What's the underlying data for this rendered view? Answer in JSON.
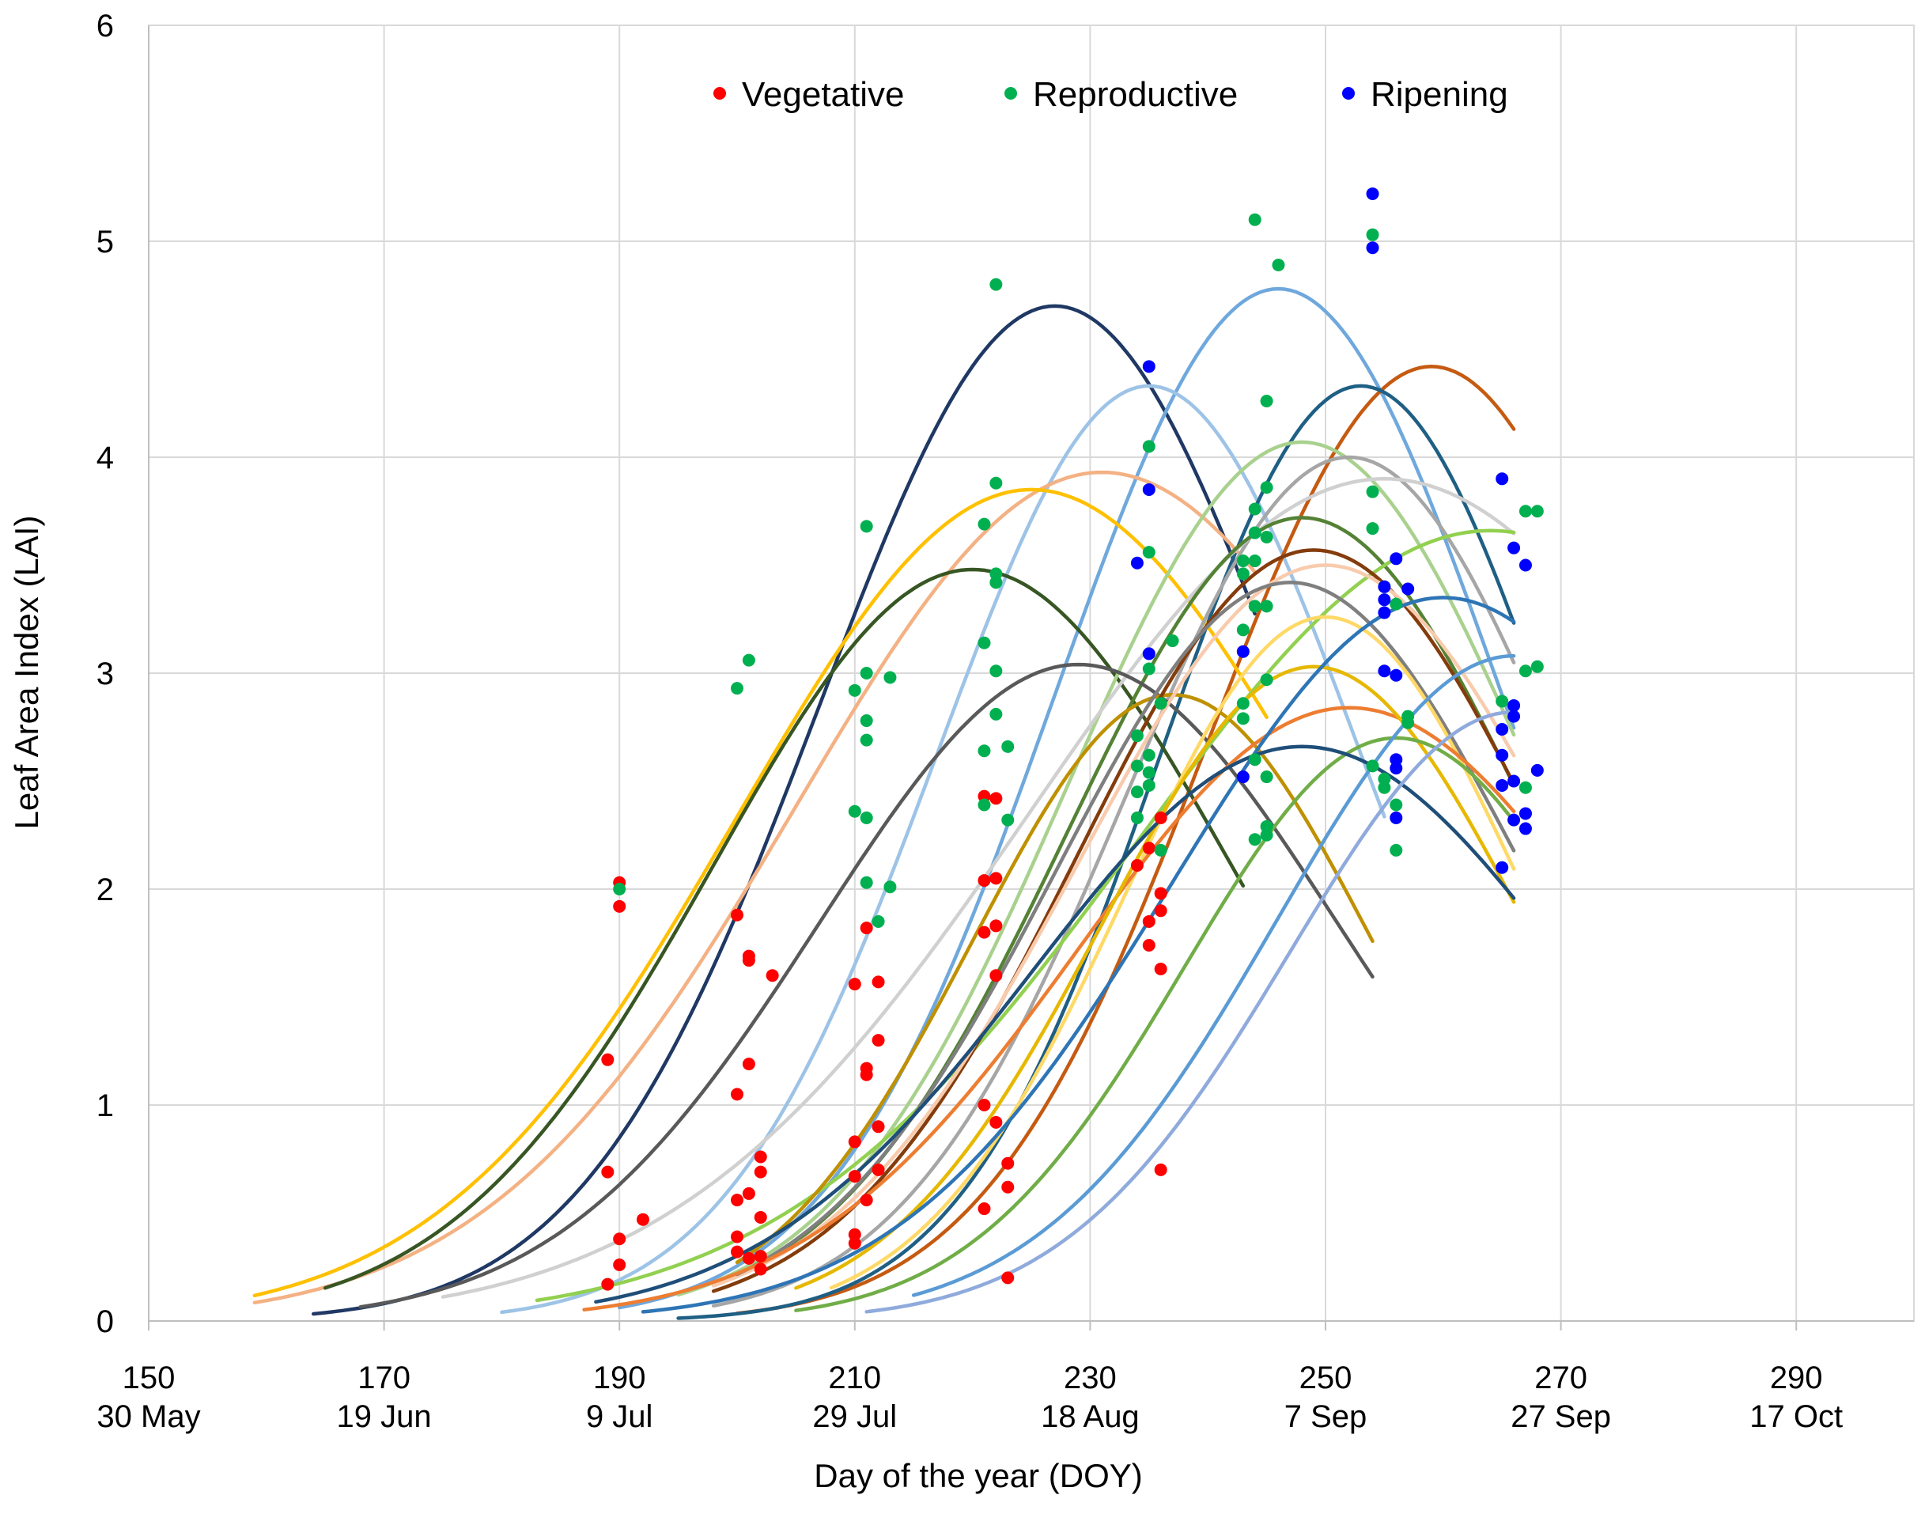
{
  "chart_data": {
    "type": "scatter",
    "title": "",
    "xlabel": "Day of the year (DOY)",
    "ylabel": "Leaf Area Index (LAI)",
    "xlim": [
      150,
      300
    ],
    "ylim": [
      0,
      6
    ],
    "x_ticks": [
      {
        "value": 150,
        "doy": "150",
        "date": "30 May"
      },
      {
        "value": 170,
        "doy": "170",
        "date": "19 Jun"
      },
      {
        "value": 190,
        "doy": "190",
        "date": "9 Jul"
      },
      {
        "value": 210,
        "doy": "210",
        "date": "29 Jul"
      },
      {
        "value": 230,
        "doy": "230",
        "date": "18 Aug"
      },
      {
        "value": 250,
        "doy": "250",
        "date": "7 Sep"
      },
      {
        "value": 270,
        "doy": "270",
        "date": "27 Sep"
      },
      {
        "value": 290,
        "doy": "290",
        "date": "17 Oct"
      }
    ],
    "y_ticks": [
      "0",
      "1",
      "2",
      "3",
      "4",
      "5",
      "6"
    ],
    "grid": true,
    "legend_position": "top-center",
    "legend": [
      {
        "name": "Vegetative",
        "color": "#ff0000"
      },
      {
        "name": "Reproductive",
        "color": "#00b050"
      },
      {
        "name": "Ripening",
        "color": "#0000ff"
      }
    ],
    "series": [
      {
        "name": "Vegetative",
        "color": "#ff0000",
        "points": [
          [
            190,
            2.03
          ],
          [
            190,
            1.92
          ],
          [
            189,
            1.21
          ],
          [
            189,
            0.69
          ],
          [
            190,
            0.38
          ],
          [
            190,
            0.26
          ],
          [
            189,
            0.17
          ],
          [
            192,
            0.47
          ],
          [
            200,
            1.88
          ],
          [
            201,
            1.69
          ],
          [
            201,
            1.67
          ],
          [
            203,
            1.6
          ],
          [
            201,
            1.19
          ],
          [
            200,
            1.05
          ],
          [
            202,
            0.76
          ],
          [
            202,
            0.69
          ],
          [
            201,
            0.59
          ],
          [
            200,
            0.56
          ],
          [
            202,
            0.48
          ],
          [
            200,
            0.39
          ],
          [
            200,
            0.32
          ],
          [
            201,
            0.29
          ],
          [
            202,
            0.3
          ],
          [
            202,
            0.24
          ],
          [
            211,
            1.82
          ],
          [
            210,
            1.56
          ],
          [
            212,
            1.57
          ],
          [
            212,
            1.3
          ],
          [
            211,
            1.17
          ],
          [
            211,
            1.14
          ],
          [
            212,
            0.9
          ],
          [
            210,
            0.83
          ],
          [
            210,
            0.67
          ],
          [
            212,
            0.7
          ],
          [
            211,
            0.56
          ],
          [
            210,
            0.4
          ],
          [
            210,
            0.36
          ],
          [
            221,
            2.43
          ],
          [
            222,
            2.42
          ],
          [
            221,
            2.04
          ],
          [
            222,
            2.05
          ],
          [
            222,
            1.83
          ],
          [
            221,
            1.8
          ],
          [
            222,
            1.6
          ],
          [
            221,
            1.0
          ],
          [
            222,
            0.92
          ],
          [
            223,
            0.73
          ],
          [
            223,
            0.62
          ],
          [
            221,
            0.52
          ],
          [
            223,
            0.2
          ],
          [
            236,
            2.33
          ],
          [
            235,
            2.19
          ],
          [
            234,
            2.11
          ],
          [
            236,
            1.98
          ],
          [
            236,
            1.9
          ],
          [
            235,
            1.85
          ],
          [
            235,
            1.74
          ],
          [
            236,
            1.63
          ],
          [
            236,
            0.7
          ]
        ]
      },
      {
        "name": "Reproductive",
        "color": "#00b050",
        "points": [
          [
            190,
            2.0
          ],
          [
            200,
            2.93
          ],
          [
            201,
            3.06
          ],
          [
            211,
            3.68
          ],
          [
            211,
            3.0
          ],
          [
            213,
            2.98
          ],
          [
            210,
            2.92
          ],
          [
            211,
            2.78
          ],
          [
            211,
            2.69
          ],
          [
            210,
            2.36
          ],
          [
            211,
            2.33
          ],
          [
            211,
            2.03
          ],
          [
            213,
            2.01
          ],
          [
            212,
            1.85
          ],
          [
            222,
            4.8
          ],
          [
            222,
            3.88
          ],
          [
            221,
            3.69
          ],
          [
            222,
            3.46
          ],
          [
            222,
            3.42
          ],
          [
            221,
            3.14
          ],
          [
            222,
            3.01
          ],
          [
            222,
            2.81
          ],
          [
            223,
            2.66
          ],
          [
            221,
            2.64
          ],
          [
            221,
            2.39
          ],
          [
            223,
            2.32
          ],
          [
            235,
            4.05
          ],
          [
            235,
            3.56
          ],
          [
            237,
            3.15
          ],
          [
            235,
            3.02
          ],
          [
            236,
            2.86
          ],
          [
            234,
            2.71
          ],
          [
            235,
            2.62
          ],
          [
            234,
            2.57
          ],
          [
            235,
            2.54
          ],
          [
            235,
            2.48
          ],
          [
            234,
            2.45
          ],
          [
            234,
            2.33
          ],
          [
            236,
            2.18
          ],
          [
            244,
            5.1
          ],
          [
            246,
            4.89
          ],
          [
            245,
            4.26
          ],
          [
            245,
            3.86
          ],
          [
            244,
            3.76
          ],
          [
            244,
            3.65
          ],
          [
            245,
            3.63
          ],
          [
            243,
            3.52
          ],
          [
            244,
            3.52
          ],
          [
            243,
            3.46
          ],
          [
            244,
            3.31
          ],
          [
            245,
            3.31
          ],
          [
            243,
            3.2
          ],
          [
            245,
            2.97
          ],
          [
            243,
            2.86
          ],
          [
            243,
            2.79
          ],
          [
            244,
            2.6
          ],
          [
            245,
            2.52
          ],
          [
            245,
            2.29
          ],
          [
            244,
            2.23
          ],
          [
            245,
            2.25
          ],
          [
            254,
            5.03
          ],
          [
            254,
            3.84
          ],
          [
            254,
            3.67
          ],
          [
            255,
            3.4
          ],
          [
            256,
            3.32
          ],
          [
            257,
            2.8
          ],
          [
            257,
            2.77
          ],
          [
            254,
            2.57
          ],
          [
            255,
            2.51
          ],
          [
            255,
            2.47
          ],
          [
            256,
            2.39
          ],
          [
            256,
            2.18
          ],
          [
            268,
            3.75
          ],
          [
            267,
            3.75
          ],
          [
            268,
            3.03
          ],
          [
            267,
            3.01
          ],
          [
            265,
            2.87
          ],
          [
            267,
            2.47
          ]
        ]
      },
      {
        "name": "Ripening",
        "color": "#0000ff",
        "points": [
          [
            235,
            4.42
          ],
          [
            235,
            3.85
          ],
          [
            234,
            3.51
          ],
          [
            235,
            3.09
          ],
          [
            243,
            3.1
          ],
          [
            243,
            2.52
          ],
          [
            254,
            5.22
          ],
          [
            254,
            4.97
          ],
          [
            255,
            3.4
          ],
          [
            255,
            3.34
          ],
          [
            255,
            3.28
          ],
          [
            256,
            3.53
          ],
          [
            257,
            3.39
          ],
          [
            255,
            3.01
          ],
          [
            256,
            2.99
          ],
          [
            256,
            2.6
          ],
          [
            256,
            2.56
          ],
          [
            256,
            2.33
          ],
          [
            265,
            3.9
          ],
          [
            266,
            3.58
          ],
          [
            267,
            3.5
          ],
          [
            266,
            2.85
          ],
          [
            266,
            2.8
          ],
          [
            265,
            2.74
          ],
          [
            265,
            2.62
          ],
          [
            268,
            2.55
          ],
          [
            266,
            2.5
          ],
          [
            265,
            2.48
          ],
          [
            267,
            2.35
          ],
          [
            266,
            2.32
          ],
          [
            267,
            2.28
          ],
          [
            265,
            2.1
          ]
        ]
      }
    ],
    "fitted_curves": [
      {
        "color": "#1f3864",
        "x0": 164,
        "x1": 244,
        "peak_x": 227,
        "peak_y": 4.7,
        "sigma": 20
      },
      {
        "color": "#6fa8dc",
        "x0": 190,
        "x1": 266,
        "peak_x": 246,
        "peak_y": 4.78,
        "sigma": 19
      },
      {
        "color": "#9dc3e6",
        "x0": 180,
        "x1": 255,
        "peak_x": 235,
        "peak_y": 4.33,
        "sigma": 18
      },
      {
        "color": "#c55a11",
        "x0": 200,
        "x1": 266,
        "peak_x": 259,
        "peak_y": 4.42,
        "sigma": 19
      },
      {
        "color": "#1f5f84",
        "x0": 195,
        "x1": 266,
        "peak_x": 253,
        "peak_y": 4.33,
        "sigma": 17
      },
      {
        "color": "#f4b183",
        "x0": 159,
        "x1": 244,
        "peak_x": 231,
        "peak_y": 3.93,
        "sigma": 26
      },
      {
        "color": "#ffc000",
        "x0": 159,
        "x1": 245,
        "peak_x": 225,
        "peak_y": 3.85,
        "sigma": 25
      },
      {
        "color": "#375623",
        "x0": 165,
        "x1": 243,
        "peak_x": 220,
        "peak_y": 3.48,
        "sigma": 22
      },
      {
        "color": "#a9d18e",
        "x0": 195,
        "x1": 266,
        "peak_x": 248,
        "peak_y": 4.07,
        "sigma": 20
      },
      {
        "color": "#a6a6a6",
        "x0": 198,
        "x1": 266,
        "peak_x": 252,
        "peak_y": 4.0,
        "sigma": 19
      },
      {
        "color": "#d0d0d0",
        "x0": 175,
        "x1": 266,
        "peak_x": 255,
        "peak_y": 3.9,
        "sigma": 30
      },
      {
        "color": "#548235",
        "x0": 200,
        "x1": 266,
        "peak_x": 248,
        "peak_y": 3.72,
        "sigma": 20
      },
      {
        "color": "#595959",
        "x0": 168,
        "x1": 254,
        "peak_x": 229,
        "peak_y": 3.04,
        "sigma": 22
      },
      {
        "color": "#92d050",
        "x0": 183,
        "x1": 266,
        "peak_x": 264,
        "peak_y": 3.66,
        "sigma": 30
      },
      {
        "color": "#bf9000",
        "x0": 200,
        "x1": 254,
        "peak_x": 237,
        "peak_y": 2.9,
        "sigma": 17
      },
      {
        "color": "#843c0c",
        "x0": 198,
        "x1": 266,
        "peak_x": 249,
        "peak_y": 3.57,
        "sigma": 20
      },
      {
        "color": "#f8cbad",
        "x0": 198,
        "x1": 266,
        "peak_x": 250,
        "peak_y": 3.5,
        "sigma": 21
      },
      {
        "color": "#7f7f7f",
        "x0": 200,
        "x1": 266,
        "peak_x": 247,
        "peak_y": 3.42,
        "sigma": 20
      },
      {
        "color": "#ffd966",
        "x0": 208,
        "x1": 266,
        "peak_x": 250,
        "peak_y": 3.26,
        "sigma": 17
      },
      {
        "color": "#ed7d31",
        "x0": 187,
        "x1": 266,
        "peak_x": 252,
        "peak_y": 2.84,
        "sigma": 23
      },
      {
        "color": "#e6b800",
        "x0": 205,
        "x1": 266,
        "peak_x": 249,
        "peak_y": 3.03,
        "sigma": 18
      },
      {
        "color": "#2e75b6",
        "x0": 192,
        "x1": 266,
        "peak_x": 260,
        "peak_y": 3.35,
        "sigma": 23
      },
      {
        "color": "#70ad47",
        "x0": 205,
        "x1": 266,
        "peak_x": 256,
        "peak_y": 2.7,
        "sigma": 18
      },
      {
        "color": "#1f4e79",
        "x0": 188,
        "x1": 266,
        "peak_x": 248,
        "peak_y": 2.66,
        "sigma": 23
      },
      {
        "color": "#8faadc",
        "x0": 211,
        "x1": 266,
        "peak_x": 266,
        "peak_y": 2.82,
        "sigma": 19
      },
      {
        "color": "#5b9bd5",
        "x0": 215,
        "x1": 266,
        "peak_x": 266,
        "peak_y": 3.08,
        "sigma": 20
      }
    ]
  }
}
